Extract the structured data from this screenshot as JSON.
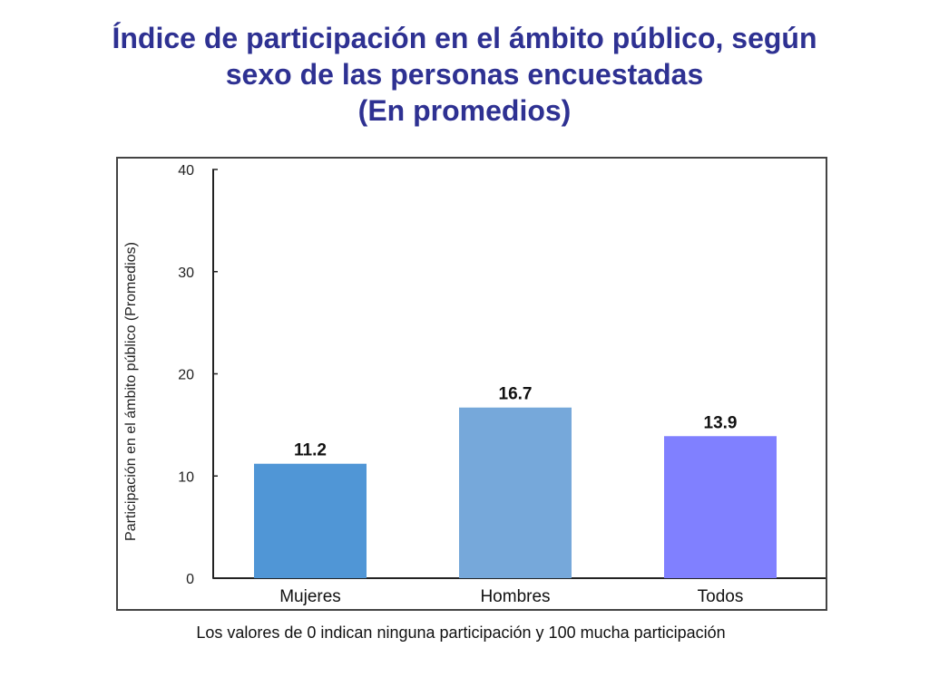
{
  "slide": {
    "title_lines": [
      "Índice de participación en el ámbito público, según",
      "sexo de las personas encuestadas",
      "(En promedios)"
    ],
    "note": "Los valores de 0 indican ninguna participación y 100 mucha participación"
  },
  "chart_data": {
    "type": "bar",
    "title": "Índice de participación en el ámbito público, según sexo de las personas encuestadas (En promedios)",
    "xlabel": "",
    "ylabel": "Participación en el ámbito público (Promedios)",
    "categories": [
      "Mujeres",
      "Hombres",
      "Todos"
    ],
    "values": [
      11.2,
      16.7,
      13.9
    ],
    "value_labels": [
      "11.2",
      "16.7",
      "13.9"
    ],
    "colors": [
      "#5096d6",
      "#76a8da",
      "#8080ff"
    ],
    "ylim": [
      0,
      40
    ],
    "yticks": [
      "0",
      "10",
      "20",
      "30",
      "40"
    ],
    "grid": false,
    "legend": "none"
  }
}
